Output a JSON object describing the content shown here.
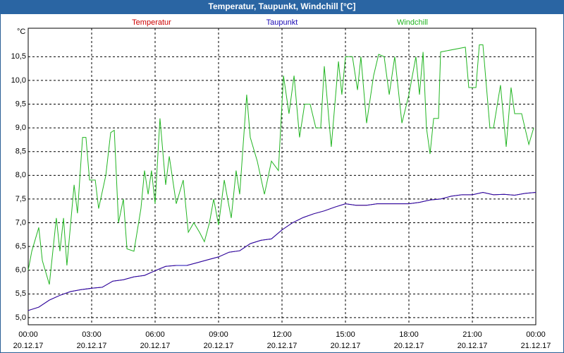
{
  "chart_data": {
    "type": "line",
    "title": "Temperatur, Taupunkt, Windchill [°C]",
    "y_label": "°C",
    "xlim": [
      0,
      24
    ],
    "xticks": [
      {
        "value": 0,
        "label": "00:00"
      },
      {
        "value": 3,
        "label": "03:00"
      },
      {
        "value": 6,
        "label": "06:00"
      },
      {
        "value": 9,
        "label": "09:00"
      },
      {
        "value": 12,
        "label": "12:00"
      },
      {
        "value": 15,
        "label": "15:00"
      },
      {
        "value": 18,
        "label": "18:00"
      },
      {
        "value": 21,
        "label": "21:00"
      },
      {
        "value": 24,
        "label": "00:00"
      }
    ],
    "xtick_dates": [
      "20.12.17",
      "20.12.17",
      "20.12.17",
      "20.12.17",
      "20.12.17",
      "20.12.17",
      "20.12.17",
      "20.12.17",
      "21.12.17"
    ],
    "ylim": [
      4.85,
      11.1
    ],
    "yticks": [
      {
        "value": 5,
        "label": "5,0"
      },
      {
        "value": 5.5,
        "label": "5,5"
      },
      {
        "value": 6,
        "label": "6,0"
      },
      {
        "value": 6.5,
        "label": "6,5"
      },
      {
        "value": 7,
        "label": "7,0"
      },
      {
        "value": 7.5,
        "label": "7,5"
      },
      {
        "value": 8,
        "label": "8,0"
      },
      {
        "value": 8.5,
        "label": "8,5"
      },
      {
        "value": 9,
        "label": "9,0"
      },
      {
        "value": 9.5,
        "label": "9,5"
      },
      {
        "value": 10,
        "label": "10,0"
      },
      {
        "value": 10.5,
        "label": "10,5"
      }
    ],
    "grid": true,
    "series": [
      {
        "name": "Temperatur",
        "color": "#cc0000",
        "x": [
          0,
          0.5,
          1,
          1.5,
          2,
          2.5,
          3,
          3.5,
          4,
          4.5,
          5,
          5.5,
          6,
          6.5,
          7,
          7.5,
          8,
          8.5,
          9,
          9.5,
          10,
          10.5,
          11,
          11.5,
          12,
          12.5,
          13,
          13.5,
          14,
          14.5,
          15,
          15.5,
          16,
          16.5,
          17,
          17.5,
          18,
          18.5,
          19,
          19.5,
          20,
          20.5,
          21,
          21.5,
          22,
          22.5,
          23,
          23.5,
          24
        ],
        "values": [
          5.15,
          5.22,
          5.37,
          5.47,
          5.55,
          5.59,
          5.62,
          5.64,
          5.77,
          5.8,
          5.86,
          5.89,
          5.99,
          6.08,
          6.1,
          6.1,
          6.16,
          6.22,
          6.28,
          6.38,
          6.41,
          6.56,
          6.63,
          6.66,
          6.85,
          7.0,
          7.11,
          7.19,
          7.25,
          7.33,
          7.4,
          7.37,
          7.37,
          7.4,
          7.4,
          7.4,
          7.4,
          7.43,
          7.48,
          7.5,
          7.56,
          7.59,
          7.59,
          7.64,
          7.59,
          7.6,
          7.58,
          7.62,
          7.64
        ]
      },
      {
        "name": "Taupunkt",
        "color": "#1a0ab4",
        "x": [
          0,
          0.5,
          1,
          1.5,
          2,
          2.5,
          3,
          3.5,
          4,
          4.5,
          5,
          5.5,
          6,
          6.5,
          7,
          7.5,
          8,
          8.5,
          9,
          9.5,
          10,
          10.5,
          11,
          11.5,
          12,
          12.5,
          13,
          13.5,
          14,
          14.5,
          15,
          15.5,
          16,
          16.5,
          17,
          17.5,
          18,
          18.5,
          19,
          19.5,
          20,
          20.5,
          21,
          21.5,
          22,
          22.5,
          23,
          23.5,
          24
        ],
        "values": [
          5.15,
          5.22,
          5.37,
          5.47,
          5.55,
          5.59,
          5.62,
          5.64,
          5.77,
          5.8,
          5.86,
          5.89,
          5.99,
          6.08,
          6.1,
          6.1,
          6.16,
          6.22,
          6.28,
          6.38,
          6.41,
          6.56,
          6.63,
          6.66,
          6.85,
          7.0,
          7.11,
          7.19,
          7.25,
          7.33,
          7.4,
          7.37,
          7.37,
          7.4,
          7.4,
          7.4,
          7.4,
          7.43,
          7.48,
          7.5,
          7.56,
          7.59,
          7.59,
          7.64,
          7.59,
          7.6,
          7.58,
          7.62,
          7.64
        ]
      },
      {
        "name": "Windchill",
        "color": "#22b522",
        "x": [
          0,
          0.17,
          0.5,
          0.67,
          1.0,
          1.33,
          1.5,
          1.67,
          1.83,
          2.17,
          2.33,
          2.57,
          2.73,
          2.9,
          3.17,
          3.33,
          3.67,
          3.9,
          4.07,
          4.27,
          4.5,
          4.67,
          5.0,
          5.33,
          5.5,
          5.67,
          5.83,
          6.0,
          6.23,
          6.5,
          6.67,
          7.0,
          7.33,
          7.57,
          7.83,
          8.1,
          8.33,
          8.57,
          8.77,
          9.0,
          9.27,
          9.43,
          9.6,
          9.83,
          10.0,
          10.33,
          10.5,
          10.83,
          11.17,
          11.5,
          11.83,
          12.07,
          12.33,
          12.57,
          12.83,
          13.07,
          13.33,
          13.6,
          13.83,
          14.0,
          14.33,
          14.67,
          14.83,
          15.0,
          15.33,
          15.57,
          15.73,
          16.0,
          16.33,
          16.57,
          16.83,
          17.07,
          17.33,
          17.67,
          18.0,
          18.33,
          18.5,
          18.67,
          18.83,
          19.0,
          19.17,
          19.4,
          19.5,
          20.67,
          20.83,
          21.17,
          21.33,
          21.5,
          21.83,
          22.0,
          22.33,
          22.6,
          22.83,
          23.0,
          23.33,
          23.67,
          23.9
        ],
        "values": [
          6.0,
          6.4,
          6.9,
          6.2,
          5.7,
          7.1,
          6.4,
          7.1,
          6.1,
          7.8,
          7.2,
          8.8,
          8.8,
          7.9,
          7.9,
          7.3,
          8.0,
          8.9,
          8.95,
          7.0,
          7.5,
          6.45,
          6.4,
          7.3,
          8.1,
          7.6,
          8.1,
          7.4,
          9.2,
          7.8,
          8.4,
          7.4,
          7.9,
          6.8,
          7.0,
          6.8,
          6.6,
          7.0,
          7.5,
          6.95,
          7.9,
          7.5,
          7.1,
          8.1,
          7.6,
          9.7,
          8.8,
          8.3,
          7.6,
          8.3,
          8.1,
          10.1,
          9.3,
          10.1,
          8.8,
          9.5,
          9.5,
          9.0,
          9.0,
          10.3,
          8.6,
          10.4,
          9.7,
          10.5,
          10.5,
          9.8,
          10.5,
          9.1,
          10.1,
          10.55,
          10.5,
          9.7,
          10.5,
          9.1,
          9.7,
          10.5,
          9.7,
          10.6,
          9.0,
          8.45,
          9.2,
          9.2,
          10.6,
          10.7,
          9.85,
          9.85,
          10.75,
          10.75,
          9.0,
          9.0,
          9.9,
          8.6,
          9.85,
          9.3,
          9.3,
          8.65,
          9.0
        ]
      }
    ]
  }
}
